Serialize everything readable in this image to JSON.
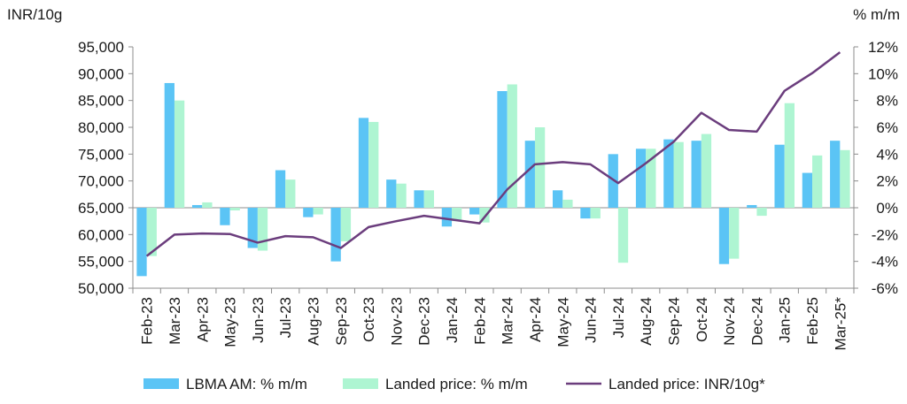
{
  "chart_data": {
    "type": "bar",
    "left_axis_unit": "INR/10g",
    "right_axis_unit": "% m/m",
    "categories": [
      "Feb-23",
      "Mar-23",
      "Apr-23",
      "May-23",
      "Jun-23",
      "Jul-23",
      "Aug-23",
      "Sep-23",
      "Oct-23",
      "Nov-23",
      "Dec-23",
      "Jan-24",
      "Feb-24",
      "Mar-24",
      "Apr-24",
      "May-24",
      "Jun-24",
      "Jul-24",
      "Aug-24",
      "Sep-24",
      "Oct-24",
      "Nov-24",
      "Dec-24",
      "Jan-25",
      "Feb-25",
      "Mar-25*"
    ],
    "left_axis": {
      "min": 50000,
      "max": 95000,
      "ticks": [
        "50,000",
        "55,000",
        "60,000",
        "65,000",
        "70,000",
        "75,000",
        "80,000",
        "85,000",
        "90,000",
        "95,000"
      ]
    },
    "right_axis": {
      "min": -6,
      "max": 12,
      "ticks": [
        "-6%",
        "-4%",
        "-2%",
        "0%",
        "2%",
        "4%",
        "6%",
        "8%",
        "10%",
        "12%"
      ]
    },
    "series": [
      {
        "name": "LBMA AM: % m/m",
        "kind": "bar",
        "axis": "right",
        "color": "#5bc4f5",
        "values": [
          -5.1,
          9.3,
          0.2,
          -1.3,
          -3.0,
          2.8,
          -0.7,
          -4.0,
          6.7,
          2.1,
          1.3,
          -1.4,
          -0.5,
          8.7,
          5.0,
          1.3,
          -0.8,
          4.0,
          4.4,
          5.1,
          5.0,
          -4.2,
          0.2,
          4.7,
          2.6,
          5.0
        ]
      },
      {
        "name": "Landed price: % m/m",
        "kind": "bar",
        "axis": "right",
        "color": "#aef5d2",
        "values": [
          -3.6,
          8.0,
          0.4,
          -0.2,
          -3.2,
          2.1,
          -0.5,
          -2.5,
          6.4,
          1.8,
          1.3,
          -1.0,
          -1.1,
          9.2,
          6.0,
          0.6,
          -0.8,
          -4.1,
          4.4,
          4.9,
          5.5,
          -3.8,
          -0.6,
          7.8,
          3.9,
          4.3
        ]
      },
      {
        "name": "Landed price: INR/10g*",
        "kind": "line",
        "axis": "left",
        "color": "#6b3d7d",
        "values": [
          56000,
          60000,
          60200,
          60100,
          58500,
          59700,
          59500,
          57500,
          61400,
          62500,
          63500,
          62800,
          62100,
          68400,
          73100,
          73500,
          73100,
          69600,
          73300,
          77300,
          82700,
          79500,
          79200,
          86800,
          90100,
          94000
        ]
      }
    ],
    "grid": false,
    "legend_position": "bottom"
  }
}
